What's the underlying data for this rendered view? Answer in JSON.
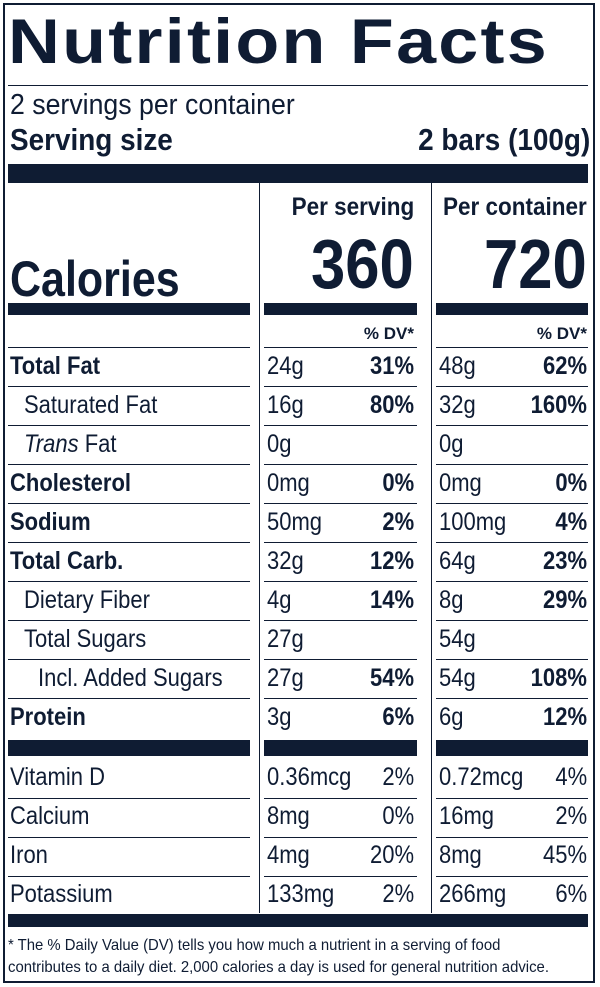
{
  "title": "Nutrition Facts",
  "servings_per_container": "2 servings per container",
  "serving_size_label": "Serving size",
  "serving_size_value": "2 bars (100g)",
  "column_headers": {
    "per_serving": "Per serving",
    "per_container": "Per container"
  },
  "calories": {
    "label": "Calories",
    "per_serving": "360",
    "per_container": "720"
  },
  "dv_header": "% DV*",
  "nutrients": [
    {
      "name": "Total Fat",
      "style": "bold",
      "serving_amount": "24g",
      "serving_dv": "31%",
      "container_amount": "48g",
      "container_dv": "62%"
    },
    {
      "name": "Saturated Fat",
      "style": "indent1",
      "serving_amount": "16g",
      "serving_dv": "80%",
      "container_amount": "32g",
      "container_dv": "160%"
    },
    {
      "name_italic": "Trans",
      "name": " Fat",
      "style": "indent1",
      "serving_amount": "0g",
      "serving_dv": "",
      "container_amount": "0g",
      "container_dv": ""
    },
    {
      "name": "Cholesterol",
      "style": "bold",
      "serving_amount": "0mg",
      "serving_dv": "0%",
      "container_amount": "0mg",
      "container_dv": "0%"
    },
    {
      "name": "Sodium",
      "style": "bold",
      "serving_amount": "50mg",
      "serving_dv": "2%",
      "container_amount": "100mg",
      "container_dv": "4%"
    },
    {
      "name": "Total Carb.",
      "style": "bold",
      "serving_amount": "32g",
      "serving_dv": "12%",
      "container_amount": "64g",
      "container_dv": "23%"
    },
    {
      "name": "Dietary Fiber",
      "style": "indent1",
      "serving_amount": "4g",
      "serving_dv": "14%",
      "container_amount": "8g",
      "container_dv": "29%"
    },
    {
      "name": "Total Sugars",
      "style": "indent1",
      "serving_amount": "27g",
      "serving_dv": "",
      "container_amount": "54g",
      "container_dv": ""
    },
    {
      "name": "Incl. Added Sugars",
      "style": "indent2",
      "serving_amount": "27g",
      "serving_dv": "54%",
      "container_amount": "54g",
      "container_dv": "108%"
    },
    {
      "name": "Protein",
      "style": "bold",
      "serving_amount": "3g",
      "serving_dv": "6%",
      "container_amount": "6g",
      "container_dv": "12%"
    }
  ],
  "vitamins": [
    {
      "name": "Vitamin D",
      "serving_amount": "0.36mcg",
      "serving_dv": "2%",
      "container_amount": "0.72mcg",
      "container_dv": "4%"
    },
    {
      "name": "Calcium",
      "serving_amount": "8mg",
      "serving_dv": "0%",
      "container_amount": "16mg",
      "container_dv": "2%"
    },
    {
      "name": "Iron",
      "serving_amount": "4mg",
      "serving_dv": "20%",
      "container_amount": "8mg",
      "container_dv": "45%"
    },
    {
      "name": "Potassium",
      "serving_amount": "133mg",
      "serving_dv": "2%",
      "container_amount": "266mg",
      "container_dv": "6%"
    }
  ],
  "footnote": {
    "line1": "* The % Daily Value (DV) tells you how much a nutrient in a serving of food",
    "line2": "contributes to a daily diet. 2,000 calories a day is used for general nutrition advice."
  },
  "colors": {
    "ink": "#0f1c33",
    "background": "#ffffff"
  }
}
